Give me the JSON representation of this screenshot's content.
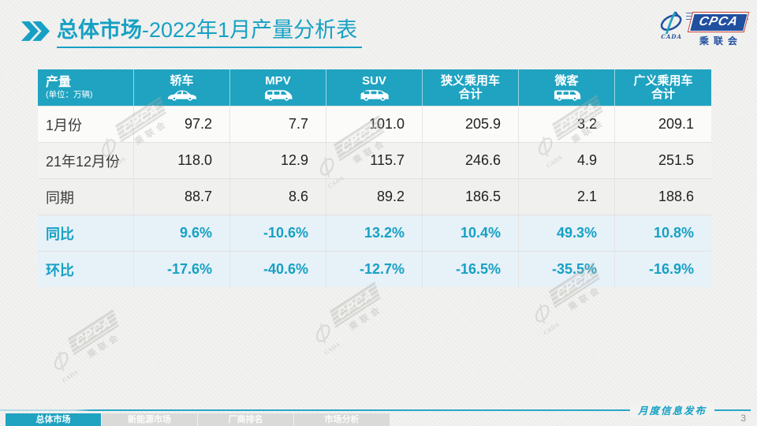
{
  "title": {
    "highlight": "总体市场",
    "rest": "-2022年1月产量分析表"
  },
  "logo": {
    "cada_text": "CADA",
    "cpca_text": "CPCA",
    "assoc_text": "乘联会"
  },
  "table": {
    "columns": [
      {
        "label": "产量",
        "sub": "(单位：万辆)",
        "icon": null
      },
      {
        "label": "轿车",
        "icon": "sedan-icon"
      },
      {
        "label": "MPV",
        "icon": "mpv-icon"
      },
      {
        "label": "SUV",
        "icon": "suv-icon"
      },
      {
        "label": "狭义乘用车",
        "label2": "合计",
        "icon": null
      },
      {
        "label": "微客",
        "icon": "microvan-icon"
      },
      {
        "label": "广义乘用车",
        "label2": "合计",
        "icon": null
      }
    ],
    "rows": [
      {
        "label": "1月份",
        "type": "data",
        "values": [
          "97.2",
          "7.7",
          "101.0",
          "205.9",
          "3.2",
          "209.1"
        ]
      },
      {
        "label": "21年12月份",
        "type": "data",
        "values": [
          "118.0",
          "12.9",
          "115.7",
          "246.6",
          "4.9",
          "251.5"
        ]
      },
      {
        "label": "同期",
        "type": "data",
        "values": [
          "88.7",
          "8.6",
          "89.2",
          "186.5",
          "2.1",
          "188.6"
        ]
      },
      {
        "label": "同比",
        "type": "percent",
        "values": [
          "9.6%",
          "-10.6%",
          "13.2%",
          "10.4%",
          "49.3%",
          "10.8%"
        ]
      },
      {
        "label": "环比",
        "type": "percent",
        "values": [
          "-17.6%",
          "-40.6%",
          "-12.7%",
          "-16.5%",
          "-35.5%",
          "-16.9%"
        ]
      }
    ]
  },
  "tabs": [
    {
      "label": "总体市场",
      "active": true
    },
    {
      "label": "新能源市场",
      "active": false
    },
    {
      "label": "厂商排名",
      "active": false
    },
    {
      "label": "市场分析",
      "active": false
    }
  ],
  "footer": {
    "caption": "月度信息发布",
    "page_number": "3"
  },
  "watermark": {
    "cpca": "CPCA",
    "assoc": "乘联会",
    "cada": "CADA"
  },
  "colors": {
    "accent": "#16a1c4",
    "header_bg": "#1fa3c1",
    "percent_bg": "#e7f1f8",
    "logo_navy": "#21509f",
    "logo_red": "#c23d2e"
  }
}
